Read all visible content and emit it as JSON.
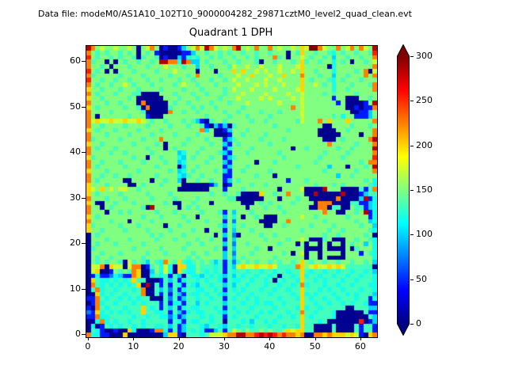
{
  "header": {
    "data_file_label": "Data file: modeM0/AS1A10_102T10_9000004282_29871cztM0_level2_quad_clean.evt"
  },
  "chart_data": {
    "type": "heatmap",
    "title": "Quadrant 1 DPH",
    "xlabel": "",
    "ylabel": "",
    "x_ticks": [
      0,
      10,
      20,
      30,
      40,
      50,
      60
    ],
    "y_ticks": [
      0,
      10,
      20,
      30,
      40,
      50,
      60
    ],
    "x_range": [
      -0.5,
      63.5
    ],
    "y_range": [
      -0.5,
      63.5
    ],
    "grid_size": 64,
    "colormap": "jet",
    "grid_lines": false,
    "colorbar": {
      "min": 0,
      "max": 300,
      "ticks": [
        0,
        50,
        100,
        150,
        200,
        250,
        300
      ],
      "extend": "both",
      "under_color": "#000083",
      "over_color": "#800000"
    },
    "palette_values": {
      "0": 5,
      "1": 45,
      "2": 75,
      "3": 100,
      "4": 118,
      "5": 132,
      "6": 150,
      "7": 172,
      "8": 200,
      "9": 225,
      "A": 255,
      "B": 285,
      "C": 315
    },
    "grid": [
      "B9676676676067960100136797B976769B67696696766768 7CC976696796976B",
      "9656566565606561000001136656656566566566566606586656654656 65665A",
      "A65665656650566501003145466565665665656669560667656656366566 5669",
      "95660606566566 56BB994B933656665665666506656665685665664656066567",
      "966560666566656667666566366566657667667666766678666660466666 6669",
      "A65606066656666566676666066606668686676766766768665666466665 6907",
      "9566666566665666665666569666656667668666766866696665663665666969",
      "A66566566566656656665665666566567667666766766668656665465666 5666",
      "9656656676566656666567665666566667666767666766686676564666566659",
      "8665666566656666566665666566665676667666676666786666664665666669",
      "9656665666550000666566656656665666766667666676676666565666656666",
      "8665666665600000066656665666656667666676766667676666661660006656",
      "96665665666090000065665666656665666766666676666766666661 6000016B",
      "8656666656650900005666656566566666566666666669676666666660010119",
      "9666656666665000009665665666665665666656665666676666666666001136",
      "9606666665666100066666666656666566656666566666676666665646611136",
      "9787787787787656656665653105665666665665666666576669686668666669",
      "9665666656666566665666566510313056666666656666666666006666566656",
      "8656665666656666566666666936001366656666666656666660000665666669",
      "9666566665666656666566665666000166566665666666666660000066660669",
      "95666665666656669666665666566613566666566665666666660006 5666669B",
      "8665666666566665606665666665663165666666566666666666696666656669",
      "96566656666665666065666665666614666656666666606656666665 6656666B",
      "9666656656666656666634665666653166656666665666666666566665666669",
      "856666666656606656664365666566135666666666656666666566665666666A",
      "9665666566665666656634666656663166666066656666666656666666665699",
      "96566666566666656666036656666613666566666666665666666366 6066656B",
      "8666566666656666665634656666563166566666566666666666566666656669",
      "9665665665666665666643566566661166666566606666666666666366566666",
      "9656666600666606656630665665661365666666666616665666666666666564",
      "8666566660065666566660000001360166665665666666666656665656666654",
      "87686767766566666666000000066616665666666606666 70000B66600005159",
      "86566665666665666656666666656656650000866566966600B00000B0001355",
      "9666566656666656666566665666666550000006660666566000000900003B14",
      "8600665666566666656006656660666666000656566665666609990000551134",
      "96606566666650B666660656566666666660666566566666600990 5500655134",
      "96660665656666656665666665666516366656666665666666669660 06656B14",
      "8656666666665666566665660666663646066560006666676656666665666614",
      "9666656660666656666666566656661626666600006696666666566666656634",
      "8566666566656666606656666666653646566660066566666566665666665663",
      "8665666656666566665666656606661636665666666666656666656656666654",
      "0656666666666656566665666666063620666656656666666666566566666560",
      "0666566665666665666566665665661636666665666656676000560006656654",
      "0656665666665666666666566566663626656666665666060660606606566364",
      "0566666666566666566665666666561636666566066666660000600006056664",
      "0665666566666566656666656656663626665666666560670660666606661654",
      "0656656666665666666666565666663636566666656666660660600006666664",
      "0656566507565365496585456565351525656566565665686566566566566563",
      "0779087707990156474088446555451537877877875555986787787875555550",
      "0780016565980036474085446545451545545545545545585455455455455453",
      "0141124311980045451530544354543535455455450554584554554554554554",
      "08544545458550001535145545455415445545545054554855454555 45545554",
      "0954545454580B05151541543554553535545554554554594555455455455544",
      "0594554555459005352514554455451545455545545545585554545545554554",
      "0084545545559005151531544545543554554555455554584545554554545553",
      "1195455454545500052513554554551545545455554555485455455455545514",
      "0194554555454555151441553545553555455454455455585545545545455411",
      "1095455545558545153514544555451545554555545555484554555550055533",
      "2184545454558554451531454455543554545545455545595545554000000511",
      "1194455555455455442413555454551545555455554554585455554000000053",
      "0049454554554555551541544554550555453554545555585554500000 00A013",
      "0401545455454554453513555435543554554555455455485500005000051551",
      "0541001008400019941513545411351576565565655687885500005000051551",
      "9441100080000000038810555457778 99BB99ABABA9A99890099898887871089"
    ]
  }
}
